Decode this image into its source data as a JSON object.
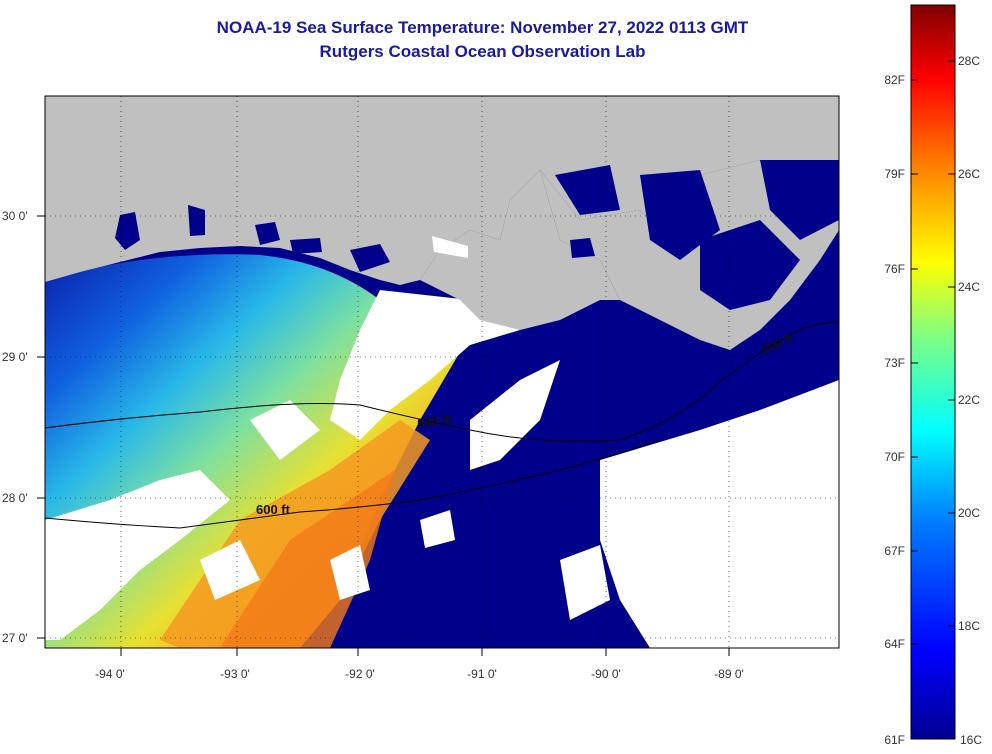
{
  "title": {
    "line1": "NOAA-19 Sea Surface Temperature:  November 27, 2022 0113 GMT",
    "line2": "Rutgers Coastal Ocean Observation Lab"
  },
  "map": {
    "lon_ticks": [
      "-94 0'",
      "-93 0'",
      "-92 0'",
      "-91 0'",
      "-90 0'",
      "-89 0'"
    ],
    "lat_ticks": [
      "30 0'",
      "29 0'",
      "28 0'",
      "27 0'"
    ],
    "contour_label": "600 ft",
    "colors": {
      "land": "#c0c0c0",
      "cloud": "#ffffff",
      "cold": "#00008b"
    }
  },
  "colorbar": {
    "fahrenheit": [
      "82F",
      "79F",
      "76F",
      "73F",
      "70F",
      "67F",
      "64F",
      "61F"
    ],
    "celsius": [
      "28C",
      "26C",
      "24C",
      "22C",
      "20C",
      "18C",
      "16C"
    ]
  }
}
